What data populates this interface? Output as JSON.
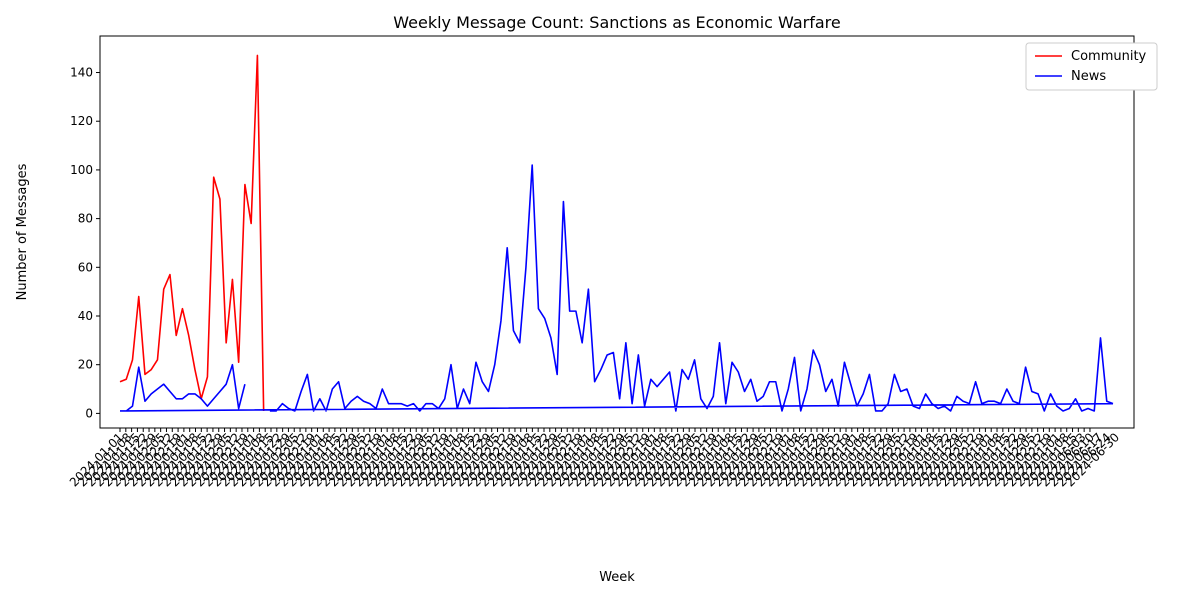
{
  "chart_data": {
    "type": "line",
    "title": "Weekly Message Count: Sanctions as Economic Warfare",
    "xlabel": "Week",
    "ylabel": "Number of Messages",
    "ylim": [
      -6,
      155
    ],
    "yticks": [
      0,
      20,
      40,
      60,
      80,
      100,
      120,
      140
    ],
    "grid": false,
    "legend_position": "top-right",
    "x_tick_labels_first": [
      "2024-01-01",
      "2024-01-08",
      "2024-01-15",
      "2024-01-22",
      "2024-01-29",
      "2024-02-05",
      "2024-02-12",
      "2024-02-19"
    ],
    "x_tick_labels_last": [
      "2024-06-03",
      "2024-06-10",
      "2024-06-17",
      "2024-06-24",
      "2024-06-30"
    ],
    "series": [
      {
        "name": "Community",
        "color": "#ff0000",
        "values": [
          13,
          14,
          22,
          48,
          16,
          18,
          22,
          51,
          57,
          32,
          43,
          32,
          18,
          6,
          15,
          97,
          88,
          29,
          55,
          21,
          94,
          78,
          147,
          1
        ]
      },
      {
        "name": "News",
        "color": "#0000ff",
        "values": [
          1,
          1,
          3,
          19,
          5,
          8,
          10,
          12,
          9,
          6,
          6,
          8,
          8,
          6,
          3,
          6,
          9,
          12,
          20,
          2,
          12,
          null,
          null,
          null,
          1,
          1,
          4,
          2,
          1,
          9,
          16,
          1,
          6,
          1,
          10,
          13,
          2,
          5,
          7,
          5,
          4,
          2,
          10,
          4,
          4,
          4,
          3,
          4,
          1,
          4,
          4,
          2,
          6,
          20,
          2,
          10,
          4,
          21,
          13,
          9,
          20,
          38,
          68,
          34,
          29,
          60,
          102,
          43,
          39,
          31,
          16,
          87,
          42,
          42,
          29,
          51,
          13,
          18,
          24,
          25,
          6,
          29,
          4,
          24,
          3,
          14,
          11,
          14,
          17,
          1,
          18,
          14,
          22,
          6,
          2,
          7,
          29,
          4,
          21,
          17,
          9,
          14,
          5,
          7,
          13,
          13,
          1,
          10,
          23,
          1,
          10,
          26,
          20,
          9,
          14,
          3,
          21,
          12,
          3,
          8,
          16,
          1,
          1,
          4,
          16,
          9,
          10,
          3,
          2,
          8,
          4,
          2,
          3,
          1,
          7,
          5,
          4,
          13,
          4,
          5,
          5,
          4,
          10,
          5,
          4,
          19,
          9,
          8,
          1,
          8,
          3,
          1,
          2,
          6,
          1,
          2,
          1,
          31,
          5,
          4
        ]
      }
    ]
  }
}
